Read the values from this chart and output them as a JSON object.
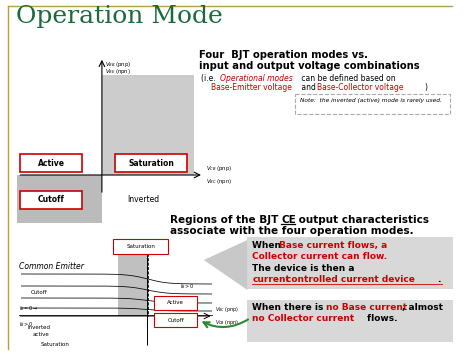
{
  "title": "Operation Mode",
  "title_color": "#1a6b3c",
  "title_fontsize": 18,
  "bg_color": "#ffffff",
  "border_color": "#b8a040",
  "red_color": "#cc0000",
  "green_color": "#2d8a2d",
  "black": "#000000",
  "light_gray": "#d0d0d0",
  "note_border": "#aaaaaa",
  "right_bg": "#d8d8d8",
  "top_title1": "Four  BJT operation modes vs.",
  "top_title2": "input and output voltage combinations",
  "label_active": "Active",
  "label_saturation": "Saturation",
  "label_cutoff": "Cutoff",
  "label_inverted": "Inverted",
  "label_common_emitter": "Common Emitter",
  "region_line1_a": "Regions of the BJT ",
  "region_line1_b": "CE",
  "region_line1_c": " output characteristics",
  "region_line2": "associate with the four operation modes.",
  "when1a": "When ",
  "when1b": "Base current flows, a",
  "when1c": "Collector current can flow.",
  "then1a": "The device is then a ",
  "then1b": "current",
  "then2": "controlled current device",
  "then_dot": ".",
  "bottom1a": "When there is ",
  "bottom1b": "no Base current",
  "bottom1c": ", almost",
  "bottom2a": "no Collector current",
  "bottom2b": " flows."
}
